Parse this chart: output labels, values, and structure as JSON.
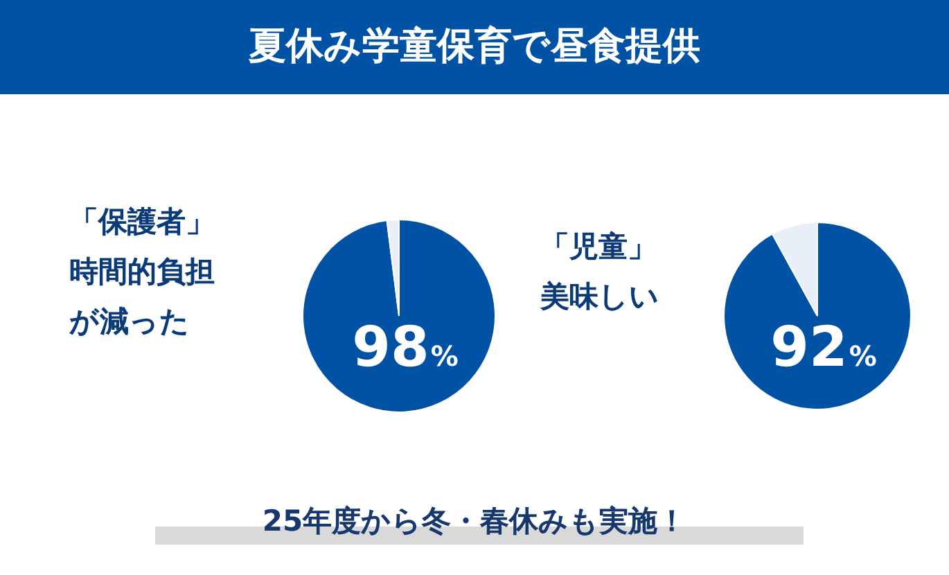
{
  "chart_data": [
    {
      "type": "pie",
      "title": "夏休み学童保育で昼食提供",
      "subtitle": "「保護者」時間的負担が減った",
      "categories": [
        null,
        null
      ],
      "values": [
        98,
        2
      ],
      "colors": [
        "#0052a4",
        "#e9eff8"
      ],
      "value_labels": [
        "98%",
        null
      ]
    },
    {
      "type": "pie",
      "subtitle": "「児童」美味しい",
      "categories": [
        null,
        null
      ],
      "values": [
        92,
        8
      ],
      "colors": [
        "#0052a4",
        "#e9eff8"
      ],
      "value_labels": [
        "92%",
        null
      ],
      "annotations": [
        "25年度から冬・春休みも実施！"
      ]
    }
  ]
}
